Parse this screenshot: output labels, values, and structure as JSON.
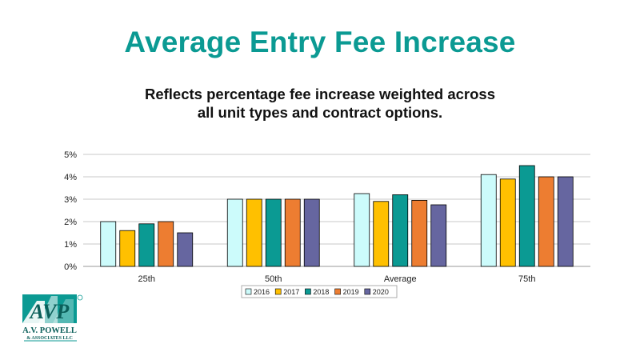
{
  "slide": {
    "title": "Average Entry Fee Increase",
    "subtitle_line1": "Reflects percentage fee increase weighted across",
    "subtitle_line2": "all unit types and contract options."
  },
  "logo": {
    "mark": "AVP",
    "name": "A.V. POWELL",
    "tagline": "& ASSOCIATES LLC",
    "color": "#0b9a93"
  },
  "chart_data": {
    "type": "bar",
    "categories": [
      "25th",
      "50th",
      "Average",
      "75th"
    ],
    "series": [
      {
        "name": "2016",
        "color": "#ccfbfb",
        "values": [
          2.0,
          3.0,
          3.25,
          4.1
        ]
      },
      {
        "name": "2017",
        "color": "#ffc000",
        "values": [
          1.6,
          3.0,
          2.9,
          3.9
        ]
      },
      {
        "name": "2018",
        "color": "#0b9a93",
        "values": [
          1.9,
          3.0,
          3.2,
          4.5
        ]
      },
      {
        "name": "2019",
        "color": "#ed7d31",
        "values": [
          2.0,
          3.0,
          2.95,
          4.0
        ]
      },
      {
        "name": "2020",
        "color": "#6666a0",
        "values": [
          1.5,
          3.0,
          2.75,
          4.0
        ]
      }
    ],
    "ylim": [
      0,
      5
    ],
    "yticks": [
      "0%",
      "1%",
      "2%",
      "3%",
      "4%",
      "5%"
    ],
    "grid": true,
    "legend_position": "bottom"
  }
}
